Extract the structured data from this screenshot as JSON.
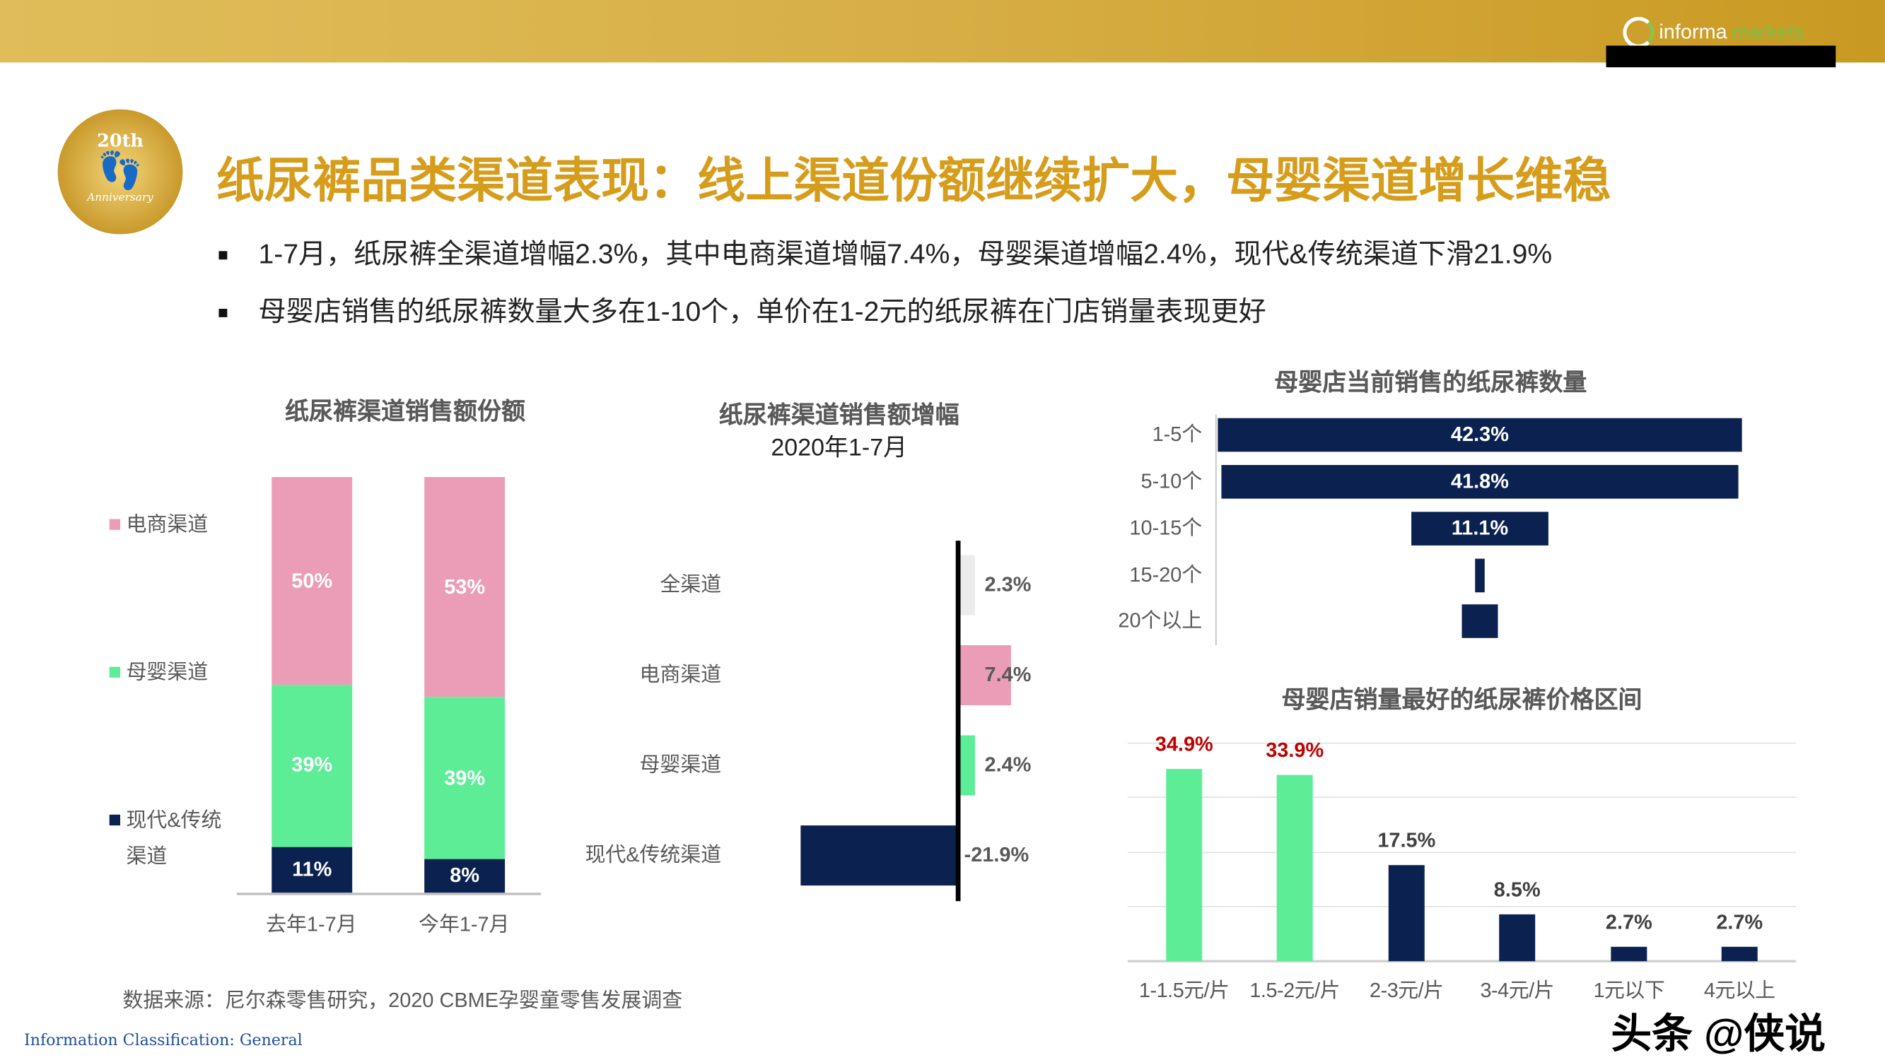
{
  "header": {
    "logo_text_a": "informa",
    "logo_text_b": "markets"
  },
  "badge": {
    "top": "20th",
    "bottom": "Anniversary"
  },
  "title": "纸尿裤品类渠道表现：线上渠道份额继续扩大，母婴渠道增长维稳",
  "bullets": [
    "1-7月，纸尿裤全渠道增幅2.3%，其中电商渠道增幅7.4%，母婴渠道增幅2.4%，现代&传统渠道下滑21.9%",
    "母婴店销售的纸尿裤数量大多在1-10个，单价在1-2元的纸尿裤在门店销量表现更好"
  ],
  "colors": {
    "pink": "#eb9db8",
    "green": "#5ded97",
    "navy": "#0b2250",
    "gray": "#ececec",
    "red": "#c00000",
    "gold": "#d69d1c"
  },
  "chart_data": [
    {
      "type": "bar",
      "stacked": true,
      "title": "纸尿裤渠道销售额份额",
      "categories": [
        "去年1-7月",
        "今年1-7月"
      ],
      "series": [
        {
          "name": "电商渠道",
          "values": [
            50,
            53
          ],
          "labels": [
            "50%",
            "53%"
          ]
        },
        {
          "name": "母婴渠道",
          "values": [
            39,
            39
          ],
          "labels": [
            "39%",
            "39%"
          ]
        },
        {
          "name": "现代&传统渠道",
          "name_lines": [
            "现代&传统",
            "渠道"
          ],
          "values": [
            11,
            8
          ],
          "labels": [
            "11%",
            "8%"
          ]
        }
      ],
      "legend": "left",
      "unit": "%"
    },
    {
      "type": "bar",
      "orientation": "horizontal",
      "title": "纸尿裤渠道销售额增幅",
      "subtitle": "2020年1-7月",
      "categories": [
        "全渠道",
        "电商渠道",
        "母婴渠道",
        "现代&传统渠道"
      ],
      "values": [
        2.3,
        7.4,
        2.4,
        -21.9
      ],
      "labels": [
        "2.3%",
        "7.4%",
        "2.4%",
        "-21.9%"
      ]
    },
    {
      "type": "bar",
      "orientation": "horizontal",
      "style": "funnel",
      "title": "母婴店当前销售的纸尿裤数量",
      "categories": [
        "1-5个",
        "5-10个",
        "10-15个",
        "15-20个",
        "20个以上"
      ],
      "values": [
        42.3,
        41.8,
        11.1,
        0.8,
        3.0
      ],
      "labels": [
        "42.3%",
        "41.8%",
        "11.1%",
        "",
        ""
      ]
    },
    {
      "type": "bar",
      "title": "母婴店销量最好的纸尿裤价格区间",
      "categories": [
        "1-1.5元/片",
        "1.5-2元/片",
        "2-3元/片",
        "3-4元/片",
        "1元以下",
        "4元以上"
      ],
      "values": [
        34.9,
        33.9,
        17.5,
        8.5,
        2.7,
        2.7
      ],
      "labels": [
        "34.9%",
        "33.9%",
        "17.5%",
        "8.5%",
        "2.7%",
        "2.7%"
      ],
      "grid": true
    }
  ],
  "footer": {
    "source": "数据来源：尼尔森零售研究，2020 CBME孕婴童零售发展调查",
    "classification": "Information Classification: General",
    "watermark": "头条 @侠说"
  }
}
